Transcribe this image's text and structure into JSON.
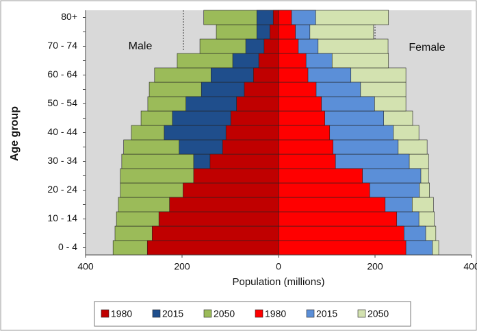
{
  "chart_data": {
    "type": "pyramid",
    "x_label": "Population (millions)",
    "y_label": "Age group",
    "annotations": [
      "Male",
      "Female"
    ],
    "categories": [
      "0 - 4",
      null,
      "10 - 14",
      null,
      "20 - 24",
      null,
      "30 - 34",
      null,
      "40 - 44",
      null,
      "50 - 54",
      null,
      "60 - 64",
      null,
      "70 - 74",
      null,
      "80+"
    ],
    "xlim": [
      -400,
      400
    ],
    "xticks": [
      {
        "value": -400,
        "label": "400"
      },
      {
        "value": -200,
        "label": "200"
      },
      0,
      200,
      {
        "value": 400,
        "label": "400"
      }
    ],
    "series": [
      {
        "name": "1980",
        "color": "#c00000",
        "values": [
          -272,
          -262,
          -248,
          -226,
          -198,
          -176,
          -142,
          -116,
          -109,
          -99,
          -87,
          -71,
          -52,
          -41,
          -30,
          -18,
          -11
        ]
      },
      {
        "name": "2015",
        "color": "#1f4e8c",
        "values": [
          -177,
          -183,
          -166,
          -145,
          -142,
          -145,
          -176,
          -206,
          -237,
          -220,
          -192,
          -160,
          -140,
          -95,
          -68,
          -45,
          -45
        ]
      },
      {
        "name": "2050",
        "color": "#9bbb59",
        "values": [
          -343,
          -339,
          -336,
          -332,
          -328,
          -328,
          -325,
          -321,
          -305,
          -285,
          -271,
          -268,
          -257,
          -210,
          -163,
          -129,
          -155
        ]
      },
      {
        "name": "1980",
        "color": "#ff0000",
        "values": [
          264,
          260,
          245,
          221,
          189,
          174,
          118,
          113,
          106,
          96,
          89,
          78,
          61,
          57,
          41,
          35,
          27
        ]
      },
      {
        "name": "2015",
        "color": "#5b8fd8",
        "values": [
          319,
          305,
          291,
          277,
          292,
          295,
          271,
          248,
          238,
          218,
          199,
          170,
          150,
          111,
          82,
          65,
          77
        ]
      },
      {
        "name": "2050",
        "color": "#d3e2b0",
        "values": [
          332,
          326,
          323,
          321,
          313,
          311,
          311,
          308,
          291,
          278,
          264,
          264,
          264,
          228,
          227,
          197,
          228
        ]
      }
    ]
  }
}
